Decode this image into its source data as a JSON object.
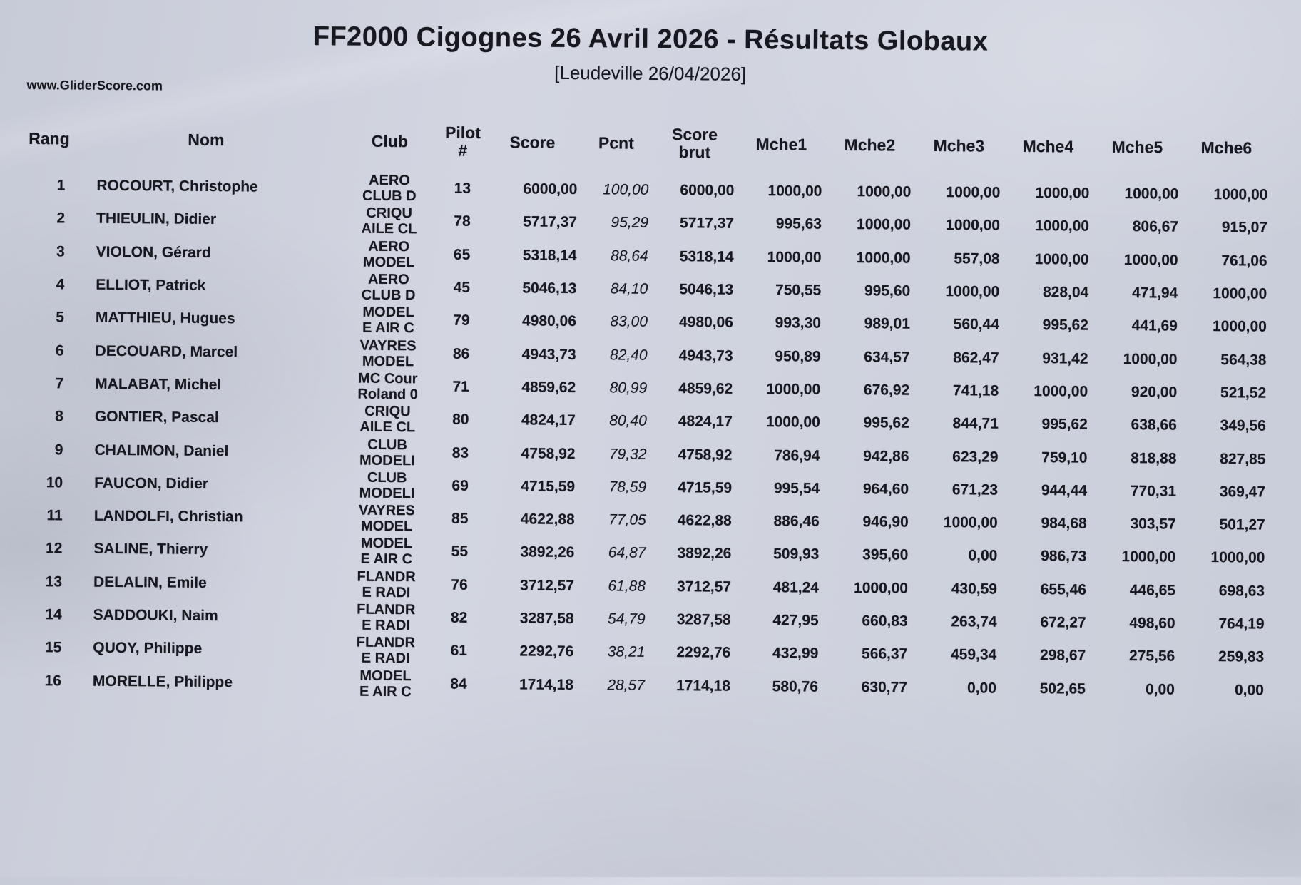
{
  "header": {
    "title": "FF2000 Cigognes 26 Avril 2026 - Résultats Globaux",
    "subtitle": "[Leudeville 26/04/2026]",
    "website": "www.GliderScore.com"
  },
  "colors": {
    "paper": "#cdd1dc",
    "ink": "#181820"
  },
  "table": {
    "headers": {
      "rang": "Rang",
      "nom": "Nom",
      "club": "Club",
      "pilot1": "Pilot",
      "pilot2": "#",
      "score": "Score",
      "pcnt": "Pcnt",
      "brut1": "Score",
      "brut2": "brut",
      "m1": "Mche1",
      "m2": "Mche2",
      "m3": "Mche3",
      "m4": "Mche4",
      "m5": "Mche5",
      "m6": "Mche6"
    },
    "rows": [
      {
        "rang": "1",
        "nom": "ROCOURT, Christophe",
        "club1": "AERO",
        "club2": "CLUB D",
        "pilot": "13",
        "score": "6000,00",
        "pcnt": "100,00",
        "brut": "6000,00",
        "m1": "1000,00",
        "m2": "1000,00",
        "m3": "1000,00",
        "m4": "1000,00",
        "m5": "1000,00",
        "m6": "1000,00"
      },
      {
        "rang": "2",
        "nom": "THIEULIN, Didier",
        "club1": "CRIQU",
        "club2": "AILE CL",
        "pilot": "78",
        "score": "5717,37",
        "pcnt": "95,29",
        "brut": "5717,37",
        "m1": "995,63",
        "m2": "1000,00",
        "m3": "1000,00",
        "m4": "1000,00",
        "m5": "806,67",
        "m6": "915,07"
      },
      {
        "rang": "3",
        "nom": "VIOLON, Gérard",
        "club1": "AERO",
        "club2": "MODEL",
        "pilot": "65",
        "score": "5318,14",
        "pcnt": "88,64",
        "brut": "5318,14",
        "m1": "1000,00",
        "m2": "1000,00",
        "m3": "557,08",
        "m4": "1000,00",
        "m5": "1000,00",
        "m6": "761,06"
      },
      {
        "rang": "4",
        "nom": "ELLIOT, Patrick",
        "club1": "AERO",
        "club2": "CLUB D",
        "pilot": "45",
        "score": "5046,13",
        "pcnt": "84,10",
        "brut": "5046,13",
        "m1": "750,55",
        "m2": "995,60",
        "m3": "1000,00",
        "m4": "828,04",
        "m5": "471,94",
        "m6": "1000,00"
      },
      {
        "rang": "5",
        "nom": "MATTHIEU, Hugues",
        "club1": "MODEL",
        "club2": "E AIR C",
        "pilot": "79",
        "score": "4980,06",
        "pcnt": "83,00",
        "brut": "4980,06",
        "m1": "993,30",
        "m2": "989,01",
        "m3": "560,44",
        "m4": "995,62",
        "m5": "441,69",
        "m6": "1000,00"
      },
      {
        "rang": "6",
        "nom": "DECOUARD, Marcel",
        "club1": "VAYRES",
        "club2": "MODEL",
        "pilot": "86",
        "score": "4943,73",
        "pcnt": "82,40",
        "brut": "4943,73",
        "m1": "950,89",
        "m2": "634,57",
        "m3": "862,47",
        "m4": "931,42",
        "m5": "1000,00",
        "m6": "564,38"
      },
      {
        "rang": "7",
        "nom": "MALABAT, Michel",
        "club1": "MC Cour",
        "club2": "Roland 0",
        "pilot": "71",
        "score": "4859,62",
        "pcnt": "80,99",
        "brut": "4859,62",
        "m1": "1000,00",
        "m2": "676,92",
        "m3": "741,18",
        "m4": "1000,00",
        "m5": "920,00",
        "m6": "521,52"
      },
      {
        "rang": "8",
        "nom": "GONTIER, Pascal",
        "club1": "CRIQU",
        "club2": "AILE CL",
        "pilot": "80",
        "score": "4824,17",
        "pcnt": "80,40",
        "brut": "4824,17",
        "m1": "1000,00",
        "m2": "995,62",
        "m3": "844,71",
        "m4": "995,62",
        "m5": "638,66",
        "m6": "349,56"
      },
      {
        "rang": "9",
        "nom": "CHALIMON, Daniel",
        "club1": "CLUB",
        "club2": "MODELI",
        "pilot": "83",
        "score": "4758,92",
        "pcnt": "79,32",
        "brut": "4758,92",
        "m1": "786,94",
        "m2": "942,86",
        "m3": "623,29",
        "m4": "759,10",
        "m5": "818,88",
        "m6": "827,85"
      },
      {
        "rang": "10",
        "nom": "FAUCON, Didier",
        "club1": "CLUB",
        "club2": "MODELI",
        "pilot": "69",
        "score": "4715,59",
        "pcnt": "78,59",
        "brut": "4715,59",
        "m1": "995,54",
        "m2": "964,60",
        "m3": "671,23",
        "m4": "944,44",
        "m5": "770,31",
        "m6": "369,47"
      },
      {
        "rang": "11",
        "nom": "LANDOLFI, Christian",
        "club1": "VAYRES",
        "club2": "MODEL",
        "pilot": "85",
        "score": "4622,88",
        "pcnt": "77,05",
        "brut": "4622,88",
        "m1": "886,46",
        "m2": "946,90",
        "m3": "1000,00",
        "m4": "984,68",
        "m5": "303,57",
        "m6": "501,27"
      },
      {
        "rang": "12",
        "nom": "SALINE, Thierry",
        "club1": "MODEL",
        "club2": "E AIR C",
        "pilot": "55",
        "score": "3892,26",
        "pcnt": "64,87",
        "brut": "3892,26",
        "m1": "509,93",
        "m2": "395,60",
        "m3": "0,00",
        "m4": "986,73",
        "m5": "1000,00",
        "m6": "1000,00"
      },
      {
        "rang": "13",
        "nom": "DELALIN, Emile",
        "club1": "FLANDR",
        "club2": "E RADI",
        "pilot": "76",
        "score": "3712,57",
        "pcnt": "61,88",
        "brut": "3712,57",
        "m1": "481,24",
        "m2": "1000,00",
        "m3": "430,59",
        "m4": "655,46",
        "m5": "446,65",
        "m6": "698,63"
      },
      {
        "rang": "14",
        "nom": "SADDOUKI, Naim",
        "club1": "FLANDR",
        "club2": "E RADI",
        "pilot": "82",
        "score": "3287,58",
        "pcnt": "54,79",
        "brut": "3287,58",
        "m1": "427,95",
        "m2": "660,83",
        "m3": "263,74",
        "m4": "672,27",
        "m5": "498,60",
        "m6": "764,19"
      },
      {
        "rang": "15",
        "nom": "QUOY, Philippe",
        "club1": "FLANDR",
        "club2": "E RADI",
        "pilot": "61",
        "score": "2292,76",
        "pcnt": "38,21",
        "brut": "2292,76",
        "m1": "432,99",
        "m2": "566,37",
        "m3": "459,34",
        "m4": "298,67",
        "m5": "275,56",
        "m6": "259,83"
      },
      {
        "rang": "16",
        "nom": "MORELLE, Philippe",
        "club1": "MODEL",
        "club2": "E AIR C",
        "pilot": "84",
        "score": "1714,18",
        "pcnt": "28,57",
        "brut": "1714,18",
        "m1": "580,76",
        "m2": "630,77",
        "m3": "0,00",
        "m4": "502,65",
        "m5": "0,00",
        "m6": "0,00"
      }
    ]
  }
}
